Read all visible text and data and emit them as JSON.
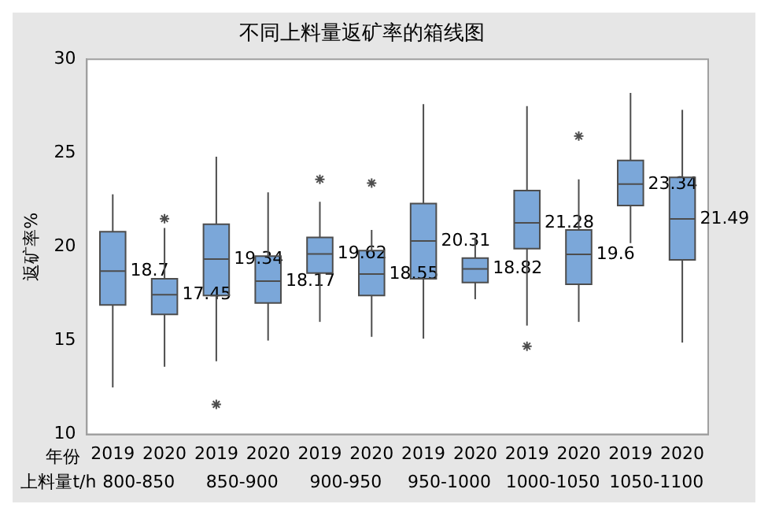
{
  "chart_data": {
    "type": "box",
    "title": "不同上料量返矿率的箱线图",
    "ylabel": "返矿率%",
    "categories": [
      "2019",
      "2020",
      "2019",
      "2020",
      "2019",
      "2020",
      "2019",
      "2020",
      "2019",
      "2020",
      "2019",
      "2020"
    ],
    "annotations": [
      "年份",
      "上料量t/h",
      "800-850",
      "850-900",
      "900-950",
      "950-1000",
      "1000-1050",
      "1050-1100",
      "18.7",
      "17.45",
      "19.34",
      "18.17",
      "19.62",
      "18.55",
      "20.31",
      "18.82",
      "21.28",
      "19.6",
      "23.34",
      "21.49"
    ],
    "color": "#7ba7d9",
    "boxes": [
      {
        "low": 12.5,
        "q1": 16.9,
        "median": 18.7,
        "q3": 20.8,
        "high": 22.8
      },
      {
        "low": 13.6,
        "q1": 16.4,
        "median": 17.45,
        "q3": 18.3,
        "high": 21.0,
        "outliers": [
          21.5
        ]
      },
      {
        "low": 13.9,
        "q1": 17.4,
        "median": 19.34,
        "q3": 21.2,
        "high": 24.8,
        "outliers": [
          11.6
        ]
      },
      {
        "low": 15.0,
        "q1": 17.0,
        "median": 18.17,
        "q3": 19.5,
        "high": 22.9
      },
      {
        "low": 16.0,
        "q1": 18.6,
        "median": 19.62,
        "q3": 20.5,
        "high": 22.4,
        "outliers": [
          23.6
        ]
      },
      {
        "low": 15.2,
        "q1": 17.4,
        "median": 18.55,
        "q3": 19.8,
        "high": 20.9,
        "outliers": [
          23.4
        ]
      },
      {
        "low": 15.1,
        "q1": 18.3,
        "median": 20.31,
        "q3": 22.3,
        "high": 27.6
      },
      {
        "low": 17.2,
        "q1": 18.1,
        "median": 18.82,
        "q3": 19.4,
        "high": 20.5
      },
      {
        "low": 15.8,
        "q1": 19.9,
        "median": 21.28,
        "q3": 23.0,
        "high": 27.5,
        "outliers": [
          14.7
        ]
      },
      {
        "low": 16.0,
        "q1": 18.0,
        "median": 19.6,
        "q3": 20.9,
        "high": 23.6,
        "outliers": [
          25.9
        ]
      },
      {
        "low": 20.2,
        "q1": 22.2,
        "median": 23.34,
        "q3": 24.6,
        "high": 28.2
      },
      {
        "low": 14.9,
        "q1": 19.3,
        "median": 21.49,
        "q3": 23.7,
        "high": 27.3
      }
    ],
    "ylim": [
      10,
      30
    ],
    "yticks": [
      10,
      15,
      20,
      25,
      30
    ],
    "grid": false,
    "legend": false
  }
}
